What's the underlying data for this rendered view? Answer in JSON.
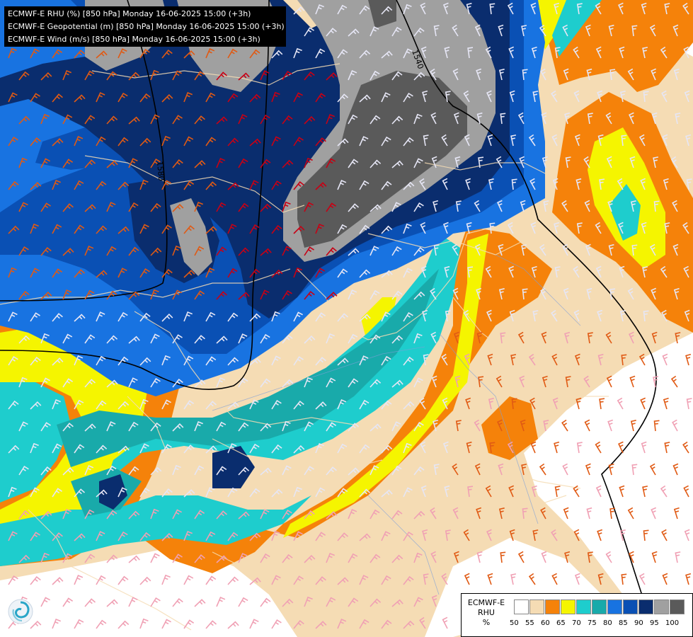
{
  "header": {
    "lines": [
      "ECMWF-E RHU (%) [850 hPa] Monday 16-06-2025 15:00 (+3h)",
      "ECMWF-E Geopotential (m) [850 hPa] Monday 16-06-2025 15:00 (+3h)",
      "ECMWF-E Wind (m/s) [850 hPa] Monday 16-06-2025 15:00 (+3h)"
    ]
  },
  "contours": {
    "labels": [
      "1540",
      "1580"
    ]
  },
  "legend": {
    "model": "ECMWF-E",
    "variable": "RHU",
    "unit": "%",
    "ticks": [
      "50",
      "55",
      "60",
      "65",
      "70",
      "75",
      "80",
      "85",
      "90",
      "95",
      "100"
    ],
    "colors": [
      "#ffffff",
      "#f5dcb4",
      "#f5820a",
      "#f5f500",
      "#1ecdcd",
      "#19aaaa",
      "#1873e1",
      "#0a50b4",
      "#0a2d6e",
      "#a0a0a0",
      "#5a5a5a"
    ]
  },
  "colors": {
    "orange_barb": "#e05a14",
    "red_barb": "#c80014",
    "pink_barb": "#f0a0b4",
    "light_barb": "#e6e6f5",
    "border": "#f5dcb4",
    "coast": "#f0e6c8",
    "contour": "#000000"
  },
  "icons": {
    "logo": "meteo-swirl-logo-icon"
  }
}
